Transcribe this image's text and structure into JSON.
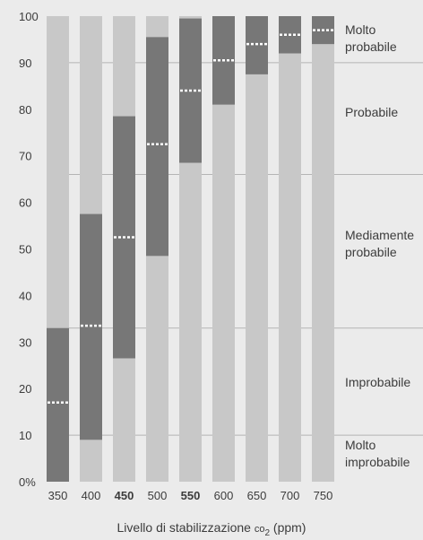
{
  "chart_data": {
    "type": "bar",
    "title": "",
    "xlabel_prefix": "Livello di stabilizzazione",
    "xlabel_co": "co",
    "xlabel_sub": "2",
    "xlabel_suffix": "(ppm)",
    "ylabel": "",
    "ylim": [
      0,
      100
    ],
    "yticks": [
      "0%",
      "10",
      "20",
      "30",
      "40",
      "50",
      "60",
      "70",
      "80",
      "90",
      "100"
    ],
    "categories": [
      "350",
      "400",
      "450",
      "500",
      "550",
      "600",
      "650",
      "700",
      "750"
    ],
    "bold_categories": [
      "450",
      "550"
    ],
    "ranges": [
      {
        "low": 0,
        "high": 33,
        "median": 17
      },
      {
        "low": 9,
        "high": 57.5,
        "median": 33.5
      },
      {
        "low": 26.5,
        "high": 78.5,
        "median": 52.5
      },
      {
        "low": 48.5,
        "high": 95.5,
        "median": 72.5
      },
      {
        "low": 68.5,
        "high": 99.5,
        "median": 84
      },
      {
        "low": 81,
        "high": 100,
        "median": 90.5
      },
      {
        "low": 87.5,
        "high": 100,
        "median": 94
      },
      {
        "low": 92,
        "high": 100,
        "median": 96
      },
      {
        "low": 94,
        "high": 100,
        "median": 97
      }
    ],
    "likelihood_bands": [
      {
        "label": [
          "Molto",
          "improbabile"
        ],
        "from": 0,
        "to": 10
      },
      {
        "label": [
          "Improbabile"
        ],
        "from": 10,
        "to": 33
      },
      {
        "label": [
          "Mediamente",
          "probabile"
        ],
        "from": 33,
        "to": 66
      },
      {
        "label": [
          "Probabile"
        ],
        "from": 66,
        "to": 90
      },
      {
        "label": [
          "Molto",
          "probabile"
        ],
        "from": 90,
        "to": 100
      }
    ],
    "colors": {
      "background": "#ebebeb",
      "column": "#c8c8c8",
      "range": "#777777",
      "median": "#ffffff",
      "band_line": "#b4b4b4",
      "text": "#3c3c3c"
    }
  }
}
